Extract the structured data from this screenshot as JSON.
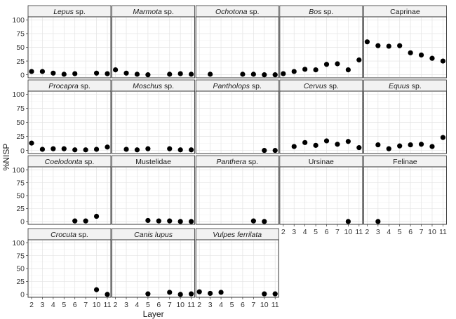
{
  "chart_data": {
    "type": "scatter",
    "facet_layout": "wrap",
    "ncol": 5,
    "xlabel": "Layer",
    "ylabel": "%NISP",
    "categories": [
      "2",
      "3",
      "4",
      "5",
      "6",
      "7",
      "10",
      "11"
    ],
    "ylim": [
      0,
      100
    ],
    "yticks": [
      0,
      25,
      50,
      75,
      100
    ],
    "grid": true,
    "colors": {
      "point": "#000000",
      "strip_fill": "#f2f2f2",
      "border": "#333333",
      "grid": "#e3e3e3"
    },
    "panels": [
      {
        "label": "Lepus",
        "suffix": " sp.",
        "italic": true,
        "points": [
          [
            "2",
            6
          ],
          [
            "3",
            6
          ],
          [
            "4",
            3
          ],
          [
            "5",
            1
          ],
          [
            "6",
            2
          ],
          [
            "10",
            3
          ],
          [
            "11",
            2
          ]
        ]
      },
      {
        "label": "Marmota",
        "suffix": " sp.",
        "italic": true,
        "points": [
          [
            "2",
            9
          ],
          [
            "3",
            3
          ],
          [
            "4",
            1
          ],
          [
            "5",
            0
          ],
          [
            "7",
            1
          ],
          [
            "10",
            2
          ],
          [
            "11",
            1
          ]
        ]
      },
      {
        "label": "Ochotona",
        "suffix": " sp.",
        "italic": true,
        "points": [
          [
            "3",
            1
          ],
          [
            "6",
            1
          ],
          [
            "7",
            1
          ],
          [
            "10",
            0
          ],
          [
            "11",
            0
          ]
        ]
      },
      {
        "label": "Bos",
        "suffix": " sp.",
        "italic": true,
        "points": [
          [
            "2",
            2
          ],
          [
            "3",
            6
          ],
          [
            "4",
            10
          ],
          [
            "5",
            9
          ],
          [
            "6",
            19
          ],
          [
            "7",
            20
          ],
          [
            "10",
            9
          ],
          [
            "11",
            27
          ]
        ]
      },
      {
        "label": "Caprinae",
        "suffix": "",
        "italic": false,
        "points": [
          [
            "2",
            60
          ],
          [
            "3",
            53
          ],
          [
            "4",
            52
          ],
          [
            "5",
            53
          ],
          [
            "6",
            40
          ],
          [
            "7",
            36
          ],
          [
            "10",
            30
          ],
          [
            "11",
            25
          ]
        ]
      },
      {
        "label": "Procapra",
        "suffix": " sp.",
        "italic": true,
        "points": [
          [
            "2",
            13
          ],
          [
            "3",
            2
          ],
          [
            "4",
            3
          ],
          [
            "5",
            3
          ],
          [
            "6",
            1
          ],
          [
            "7",
            1
          ],
          [
            "10",
            2
          ],
          [
            "11",
            6
          ]
        ]
      },
      {
        "label": "Moschus",
        "suffix": " sp.",
        "italic": true,
        "points": [
          [
            "3",
            2
          ],
          [
            "4",
            1
          ],
          [
            "5",
            3
          ],
          [
            "7",
            3
          ],
          [
            "10",
            1
          ],
          [
            "11",
            1
          ]
        ]
      },
      {
        "label": "Pantholops",
        "suffix": " sp.",
        "italic": true,
        "points": [
          [
            "10",
            0
          ],
          [
            "11",
            0
          ]
        ]
      },
      {
        "label": "Cervus",
        "suffix": " sp.",
        "italic": true,
        "points": [
          [
            "3",
            7
          ],
          [
            "4",
            14
          ],
          [
            "5",
            9
          ],
          [
            "6",
            17
          ],
          [
            "7",
            11
          ],
          [
            "10",
            16
          ],
          [
            "11",
            5
          ]
        ]
      },
      {
        "label": "Equus",
        "suffix": " sp.",
        "italic": true,
        "points": [
          [
            "3",
            10
          ],
          [
            "4",
            3
          ],
          [
            "5",
            8
          ],
          [
            "6",
            10
          ],
          [
            "7",
            11
          ],
          [
            "10",
            7
          ],
          [
            "11",
            23
          ]
        ]
      },
      {
        "label": "Coelodonta",
        "suffix": " sp.",
        "italic": true,
        "points": [
          [
            "6",
            1
          ],
          [
            "7",
            1
          ],
          [
            "10",
            10
          ]
        ]
      },
      {
        "label": "Mustelidae",
        "suffix": "",
        "italic": false,
        "points": [
          [
            "5",
            2
          ],
          [
            "6",
            1
          ],
          [
            "7",
            1
          ],
          [
            "10",
            0
          ],
          [
            "11",
            0
          ]
        ]
      },
      {
        "label": "Panthera",
        "suffix": " sp.",
        "italic": true,
        "points": [
          [
            "7",
            1
          ],
          [
            "10",
            0
          ]
        ]
      },
      {
        "label": "Ursinae",
        "suffix": "",
        "italic": false,
        "points": [
          [
            "10",
            0
          ]
        ]
      },
      {
        "label": "Felinae",
        "suffix": "",
        "italic": false,
        "points": [
          [
            "3",
            0
          ]
        ]
      },
      {
        "label": "Crocuta",
        "suffix": " sp.",
        "italic": true,
        "points": [
          [
            "10",
            9
          ],
          [
            "11",
            0
          ]
        ]
      },
      {
        "label": "Canis lupus",
        "suffix": "",
        "italic": true,
        "points": [
          [
            "5",
            1
          ],
          [
            "7",
            4
          ],
          [
            "10",
            0
          ],
          [
            "11",
            1
          ]
        ]
      },
      {
        "label": "Vulpes ferrilata",
        "suffix": "",
        "italic": true,
        "points": [
          [
            "2",
            5
          ],
          [
            "3",
            2
          ],
          [
            "4",
            4
          ],
          [
            "10",
            1
          ],
          [
            "11",
            1
          ]
        ]
      }
    ]
  }
}
